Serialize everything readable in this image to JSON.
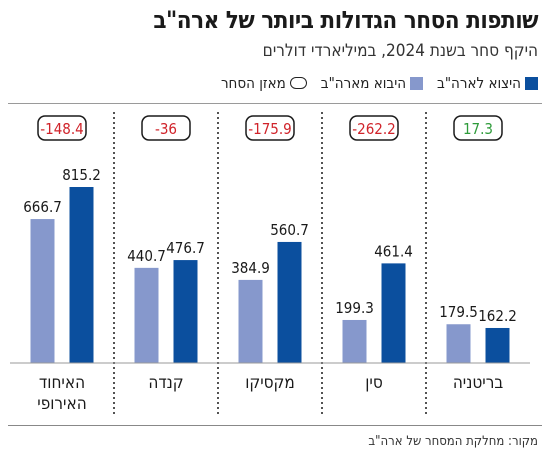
{
  "title": "שותפות הסחר הגדולות ביותר של ארה\"ב",
  "subtitle": "היקף סחר בשנת 2024, במיליארדי דולרים",
  "legend": {
    "export": "היצוא לארה\"ב",
    "import": "היבוא מארה\"ב",
    "balance": "מאזן הסחר"
  },
  "source": "מקור: מחלקת המסחר של ארה\"ב",
  "colors": {
    "export": "#0b4f9e",
    "import": "#8698cc",
    "negative": "#d0232a",
    "positive": "#2e9b3a",
    "divider": "#1a1a1a"
  },
  "chart_data": {
    "type": "bar",
    "categories": [
      "האיחוד האירופי",
      "קנדה",
      "מקסיקו",
      "סין",
      "בריטניה"
    ],
    "series": [
      {
        "name": "היבוא מארה\"ב",
        "values": [
          666.7,
          440.7,
          384.9,
          199.3,
          179.5
        ]
      },
      {
        "name": "היצוא לארה\"ב",
        "values": [
          815.2,
          476.7,
          560.7,
          461.4,
          162.2
        ]
      }
    ],
    "balance": [
      "-148.4",
      "-36",
      "-175.9",
      "-262.2",
      "17.3"
    ],
    "balance_values": [
      -148.4,
      -36,
      -175.9,
      -262.2,
      17.3
    ],
    "ylim": [
      0,
      815.2
    ],
    "grid": false,
    "legend_position": "top-right"
  }
}
